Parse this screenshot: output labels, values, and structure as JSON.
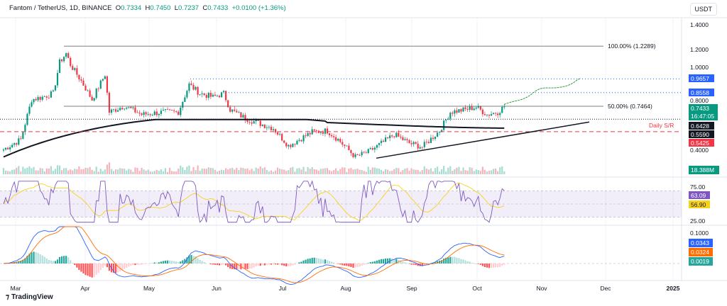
{
  "header": {
    "symbol": "Fantom / TetherUS, 1D, BINANCE",
    "o_label": "O",
    "o": "0.7334",
    "h_label": "H",
    "h": "0.7450",
    "l_label": "L",
    "l": "0.7237",
    "c_label": "C",
    "c": "0.7433",
    "change": "+0.0100 (+1.36%)"
  },
  "currency": "USDT",
  "brand": "TradingView",
  "colors": {
    "up": "#089981",
    "down": "#f23645",
    "ma": "#131722",
    "rsi": "#7e57c2",
    "rsi_ma": "#f7d21b",
    "macd": "#2962ff",
    "signal": "#ff6d00",
    "sr": "#f23645",
    "blue": "#2962ff"
  },
  "chart_data": {
    "type": "candlestick",
    "price_axis": {
      "ticks": [
        "1.4000",
        "1.2000",
        "1.0000",
        "0.8000",
        "0.4000"
      ],
      "range": [
        0.3,
        1.45
      ]
    },
    "time_axis": [
      "Mar",
      "Apr",
      "May",
      "Jun",
      "Jul",
      "Aug",
      "Sep",
      "Oct",
      "Nov",
      "Dec",
      "2025"
    ],
    "close_path_day_price": [
      [
        0,
        0.4
      ],
      [
        8,
        0.48
      ],
      [
        13,
        0.8
      ],
      [
        18,
        0.82
      ],
      [
        23,
        0.85
      ],
      [
        26,
        1.1
      ],
      [
        29,
        1.17
      ],
      [
        31,
        1.08
      ],
      [
        36,
        0.95
      ],
      [
        41,
        0.8
      ],
      [
        47,
        1.0
      ],
      [
        49,
        0.7
      ],
      [
        56,
        0.75
      ],
      [
        64,
        0.68
      ],
      [
        74,
        0.7
      ],
      [
        81,
        0.7
      ],
      [
        86,
        0.92
      ],
      [
        91,
        0.85
      ],
      [
        97,
        0.82
      ],
      [
        102,
        0.85
      ],
      [
        105,
        0.72
      ],
      [
        112,
        0.65
      ],
      [
        120,
        0.6
      ],
      [
        125,
        0.57
      ],
      [
        132,
        0.43
      ],
      [
        137,
        0.48
      ],
      [
        143,
        0.54
      ],
      [
        150,
        0.55
      ],
      [
        155,
        0.48
      ],
      [
        163,
        0.34
      ],
      [
        169,
        0.38
      ],
      [
        176,
        0.46
      ],
      [
        181,
        0.52
      ],
      [
        188,
        0.45
      ],
      [
        194,
        0.42
      ],
      [
        202,
        0.55
      ],
      [
        207,
        0.7
      ],
      [
        214,
        0.72
      ],
      [
        219,
        0.74
      ],
      [
        224,
        0.68
      ],
      [
        229,
        0.7
      ],
      [
        232,
        0.7433
      ]
    ],
    "levels": [
      {
        "label": "100.00% (1.2289)",
        "price": 1.2289
      },
      {
        "label": "50.00% (0.7464)",
        "price": 0.7464
      },
      {
        "label": "Daily S/R",
        "price": 0.5425
      }
    ],
    "price_tags": [
      {
        "value": "0.9657",
        "kind": "blue"
      },
      {
        "value": "0.8558",
        "kind": "blue"
      },
      {
        "value": "0.7433",
        "sub": "16:47:05",
        "kind": "up"
      },
      {
        "value": "0.6428",
        "kind": "black"
      },
      {
        "value": "0.5590",
        "kind": "black"
      },
      {
        "value": "0.5425",
        "kind": "down"
      }
    ],
    "volume": {
      "last": "18.388M"
    },
    "rsi": {
      "ticks": [
        "75.00",
        "25.00"
      ],
      "rsi": "63.09",
      "rsi_ma": "56.90"
    },
    "macd": {
      "ticks": [
        "0.1000"
      ],
      "macd": "0.0343",
      "signal": "0.0324",
      "hist": "0.0019"
    }
  }
}
